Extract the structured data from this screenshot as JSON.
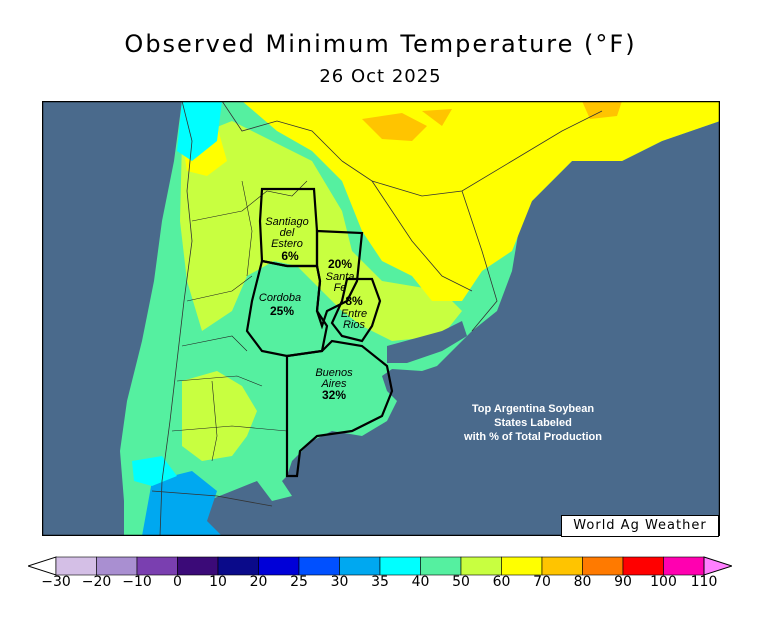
{
  "title": "Observed Minimum Temperature (°F)",
  "date": "26 Oct 2025",
  "credit": "World Ag Weather",
  "annotation": [
    "Top Argentina Soybean",
    "States Labeled",
    "with % of Total Production"
  ],
  "states": [
    {
      "name_lines": [
        "Santiago",
        "del",
        "Estero"
      ],
      "pct": "6%"
    },
    {
      "name_lines": [
        "Santa",
        "Fe"
      ],
      "pct": "20%"
    },
    {
      "name_lines": [
        "Cordoba"
      ],
      "pct": "25%"
    },
    {
      "name_lines": [
        "Entre",
        "Rios"
      ],
      "pct": "8%"
    },
    {
      "name_lines": [
        "Buenos",
        "Aires"
      ],
      "pct": "32%"
    }
  ],
  "legend": {
    "ticks": [
      "−30",
      "−20",
      "−10",
      "0",
      "10",
      "20",
      "25",
      "30",
      "35",
      "40",
      "50",
      "60",
      "70",
      "80",
      "90",
      "100",
      "110"
    ],
    "colors": [
      "#ffffff",
      "#d4bfe6",
      "#a98fd1",
      "#7a3fb0",
      "#3b0a78",
      "#0a0a8a",
      "#0000d8",
      "#0050ff",
      "#00a8f0",
      "#00ffff",
      "#55f0a0",
      "#c8ff40",
      "#ffff00",
      "#ffc400",
      "#ff7a00",
      "#ff0000",
      "#ff00b0",
      "#ff80ff"
    ]
  }
}
